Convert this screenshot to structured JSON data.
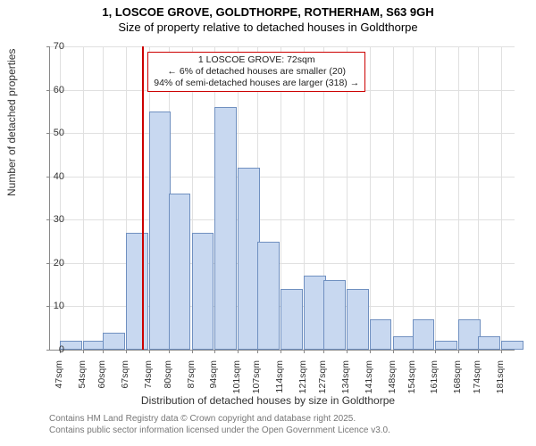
{
  "title_main": "1, LOSCOE GROVE, GOLDTHORPE, ROTHERHAM, S63 9GH",
  "title_sub": "Size of property relative to detached houses in Goldthorpe",
  "annotation": {
    "line1": "1 LOSCOE GROVE: 72sqm",
    "line2": "← 6% of detached houses are smaller (20)",
    "line3": "94% of semi-detached houses are larger (318) →"
  },
  "chart": {
    "type": "histogram",
    "background_color": "#ffffff",
    "grid_color": "#e0e0e0",
    "bar_fill": "#c8d8f0",
    "bar_border": "#7090c0",
    "refline_color": "#cc0000",
    "refline_x": 72,
    "ylim": [
      0,
      70
    ],
    "ytick_step": 10,
    "xlim": [
      44,
      185
    ],
    "xtick_labels": [
      "47sqm",
      "54sqm",
      "60sqm",
      "67sqm",
      "74sqm",
      "80sqm",
      "87sqm",
      "94sqm",
      "101sqm",
      "107sqm",
      "114sqm",
      "121sqm",
      "127sqm",
      "134sqm",
      "141sqm",
      "148sqm",
      "154sqm",
      "161sqm",
      "168sqm",
      "174sqm",
      "181sqm"
    ],
    "xtick_positions": [
      47,
      54,
      60,
      67,
      74,
      80,
      87,
      94,
      101,
      107,
      114,
      121,
      127,
      134,
      141,
      148,
      154,
      161,
      168,
      174,
      181
    ],
    "bin_width": 6.7,
    "bars_start": [
      47,
      54,
      60,
      67,
      74,
      80,
      87,
      94,
      101,
      107,
      114,
      121,
      127,
      134,
      141,
      148,
      154,
      161,
      168,
      174,
      181
    ],
    "values": [
      2,
      2,
      4,
      27,
      55,
      36,
      27,
      56,
      42,
      25,
      14,
      17,
      16,
      14,
      7,
      3,
      7,
      2,
      7,
      3,
      2
    ],
    "ylabel": "Number of detached properties",
    "xlabel": "Distribution of detached houses by size in Goldthorpe",
    "label_fontsize": 12,
    "tick_fontsize": 11
  },
  "attribution": {
    "line1": "Contains HM Land Registry data © Crown copyright and database right 2025.",
    "line2": "Contains public sector information licensed under the Open Government Licence v3.0."
  }
}
